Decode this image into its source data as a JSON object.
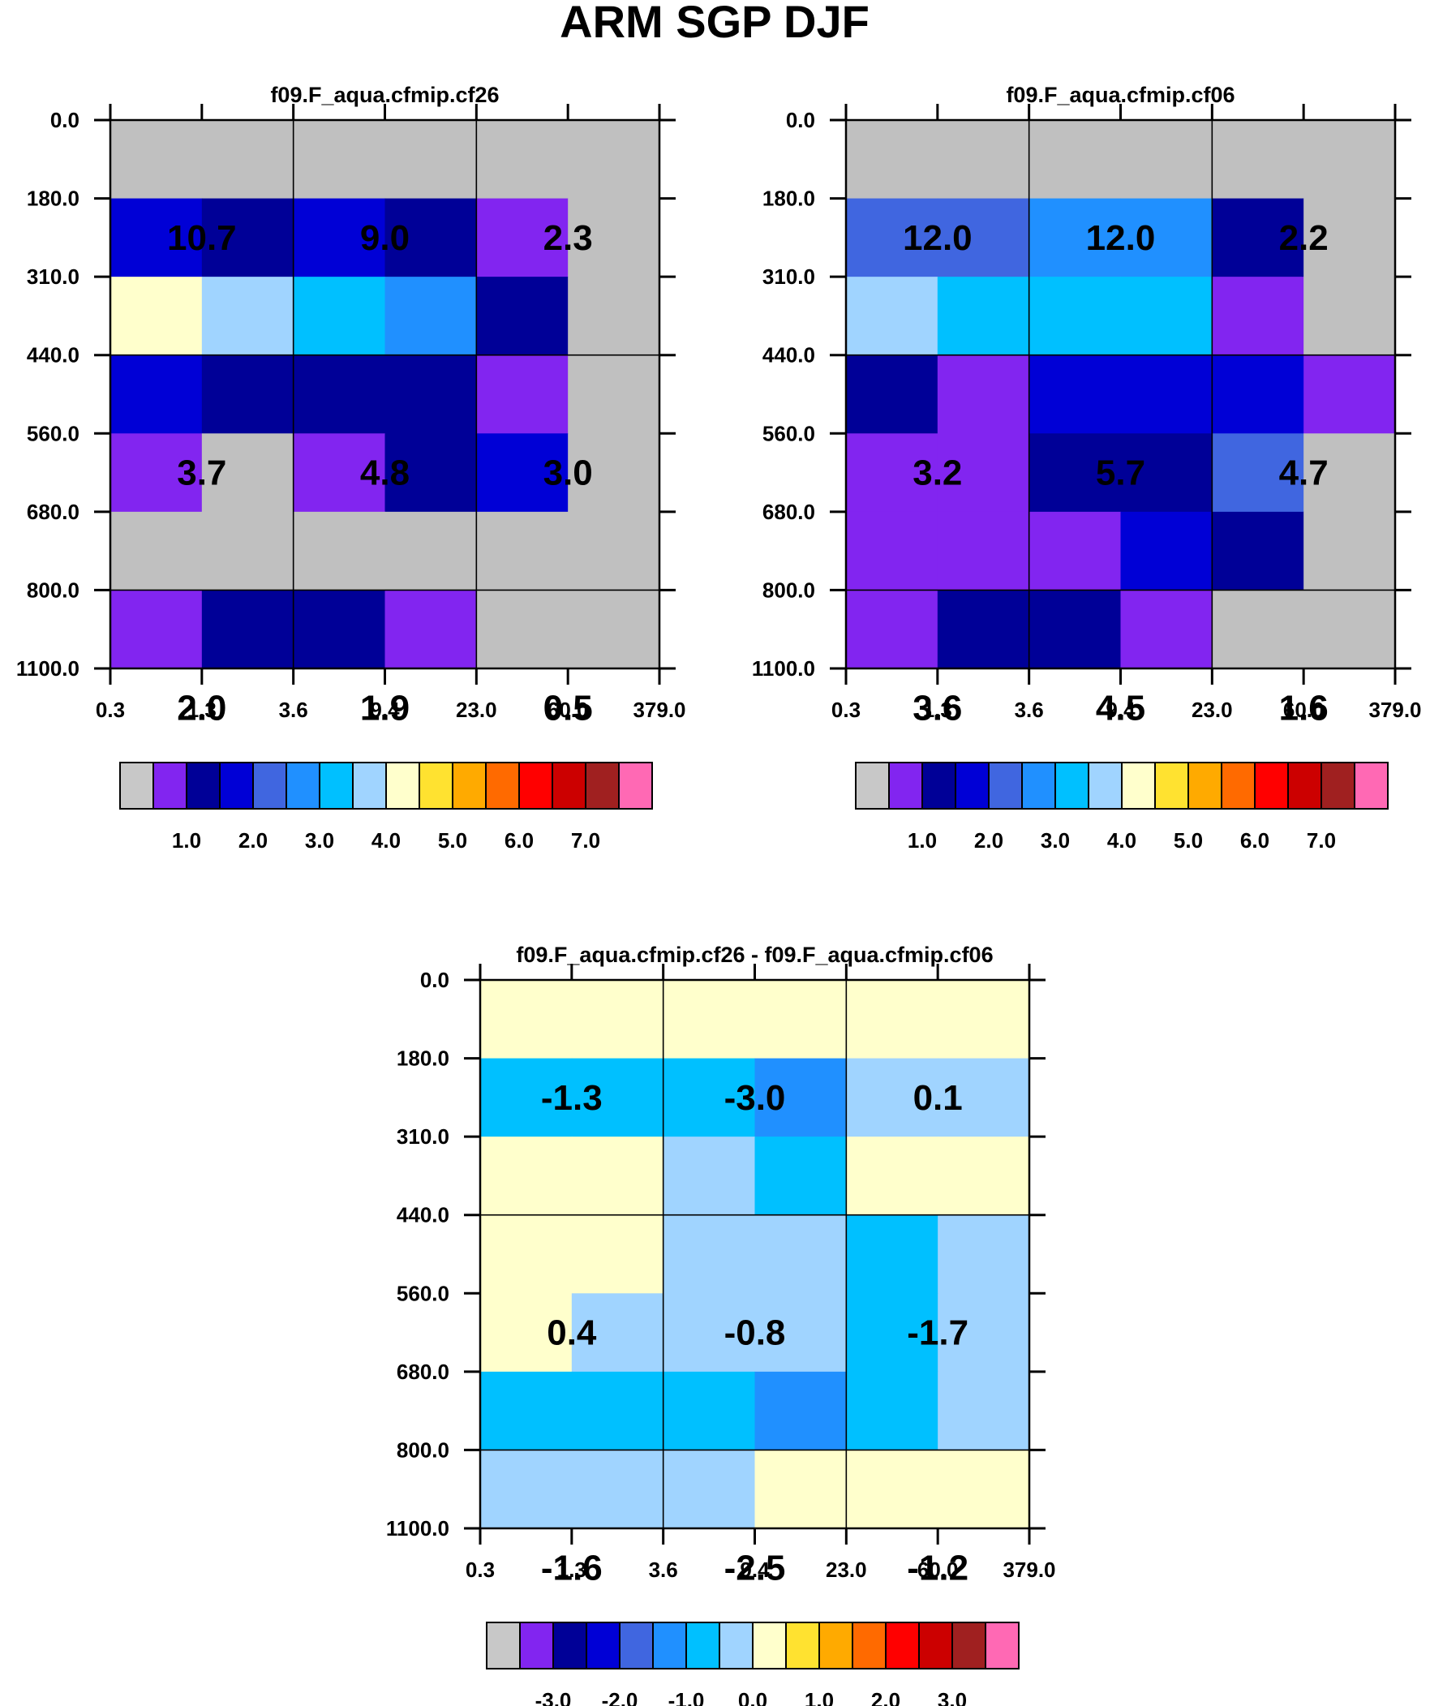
{
  "title": "ARM SGP DJF",
  "chart_data": [
    {
      "type": "heatmap",
      "id": "panel-1",
      "title": "f09.F_aqua.cfmip.cf26",
      "x_ticks": [
        "0.3",
        "1.3",
        "3.6",
        "9.4",
        "23.0",
        "60.0",
        "379.0"
      ],
      "y_ticks": [
        "0.0",
        "180.0",
        "310.0",
        "440.0",
        "560.0",
        "680.0",
        "800.0",
        "1100.0"
      ],
      "cells": [
        [
          0,
          0,
          0,
          0,
          0,
          0
        ],
        [
          3,
          2,
          3,
          2,
          1,
          0
        ],
        [
          8,
          7,
          6,
          5,
          2,
          0
        ],
        [
          3,
          2,
          2,
          2,
          1,
          0
        ],
        [
          1,
          0,
          1,
          2,
          3,
          0
        ],
        [
          0,
          0,
          0,
          0,
          0,
          0
        ],
        [
          1,
          2,
          2,
          1,
          0,
          0
        ]
      ],
      "annotations": [
        [
          "10.7",
          "9.0",
          "2.3"
        ],
        [
          "3.7",
          "4.8",
          "3.0"
        ],
        [
          "2.0",
          "1.9",
          "0.5"
        ]
      ],
      "colorbar_labels": [
        "1.0",
        "2.0",
        "3.0",
        "4.0",
        "5.0",
        "6.0",
        "7.0"
      ]
    },
    {
      "type": "heatmap",
      "id": "panel-2",
      "title": "f09.F_aqua.cfmip.cf06",
      "x_ticks": [
        "0.3",
        "1.3",
        "3.6",
        "9.4",
        "23.0",
        "60.0",
        "379.0"
      ],
      "y_ticks": [
        "0.0",
        "180.0",
        "310.0",
        "440.0",
        "560.0",
        "680.0",
        "800.0",
        "1100.0"
      ],
      "cells": [
        [
          0,
          0,
          0,
          0,
          0,
          0
        ],
        [
          4,
          4,
          5,
          5,
          2,
          0
        ],
        [
          7,
          6,
          6,
          6,
          1,
          0
        ],
        [
          2,
          1,
          3,
          3,
          3,
          1
        ],
        [
          1,
          1,
          2,
          2,
          4,
          0
        ],
        [
          1,
          1,
          1,
          3,
          2,
          0
        ],
        [
          1,
          2,
          2,
          1,
          0,
          0
        ]
      ],
      "annotations": [
        [
          "12.0",
          "12.0",
          "2.2"
        ],
        [
          "3.2",
          "5.7",
          "4.7"
        ],
        [
          "3.6",
          "4.5",
          "1.6"
        ]
      ],
      "colorbar_labels": [
        "1.0",
        "2.0",
        "3.0",
        "4.0",
        "5.0",
        "6.0",
        "7.0"
      ]
    },
    {
      "type": "heatmap",
      "id": "panel-3",
      "title": "f09.F_aqua.cfmip.cf26 - f09.F_aqua.cfmip.cf06",
      "x_ticks": [
        "0.3",
        "1.3",
        "3.6",
        "9.4",
        "23.0",
        "60.0",
        "379.0"
      ],
      "y_ticks": [
        "0.0",
        "180.0",
        "310.0",
        "440.0",
        "560.0",
        "680.0",
        "800.0",
        "1100.0"
      ],
      "cells": [
        [
          8,
          8,
          8,
          8,
          8,
          8
        ],
        [
          6,
          6,
          6,
          5,
          7,
          7
        ],
        [
          8,
          8,
          7,
          6,
          8,
          8
        ],
        [
          8,
          8,
          7,
          7,
          6,
          7
        ],
        [
          8,
          7,
          7,
          7,
          6,
          7
        ],
        [
          6,
          6,
          6,
          5,
          6,
          7
        ],
        [
          7,
          7,
          7,
          8,
          8,
          8
        ]
      ],
      "annotations": [
        [
          "-1.3",
          "-3.0",
          "0.1"
        ],
        [
          "0.4",
          "-0.8",
          "-1.7"
        ],
        [
          "-1.6",
          "-2.5",
          "-1.2"
        ]
      ],
      "colorbar_labels": [
        "-3.0",
        "-2.0",
        "-1.0",
        "0.0",
        "1.0",
        "2.0",
        "3.0"
      ]
    }
  ],
  "colors": {
    "palette": [
      "#c0c0c0",
      "#8225f0",
      "#000097",
      "#0000d6",
      "#4066e0",
      "#2090ff",
      "#00c0ff",
      "#a0d4ff",
      "#ffffcc",
      "#ffe230",
      "#ffaa00",
      "#ff6a00",
      "#ff0000",
      "#cc0000",
      "#a02020",
      "#ff69b4"
    ],
    "colorbar_swatch": [
      "#c8c8c8",
      "#8225f0",
      "#000097",
      "#0000d6",
      "#4066e0",
      "#2090ff",
      "#00c0ff",
      "#a0d4ff",
      "#ffffcc",
      "#ffe230",
      "#ffaa00",
      "#ff6a00",
      "#ff0000",
      "#cc0000",
      "#a02020",
      "#ff69b4"
    ]
  }
}
